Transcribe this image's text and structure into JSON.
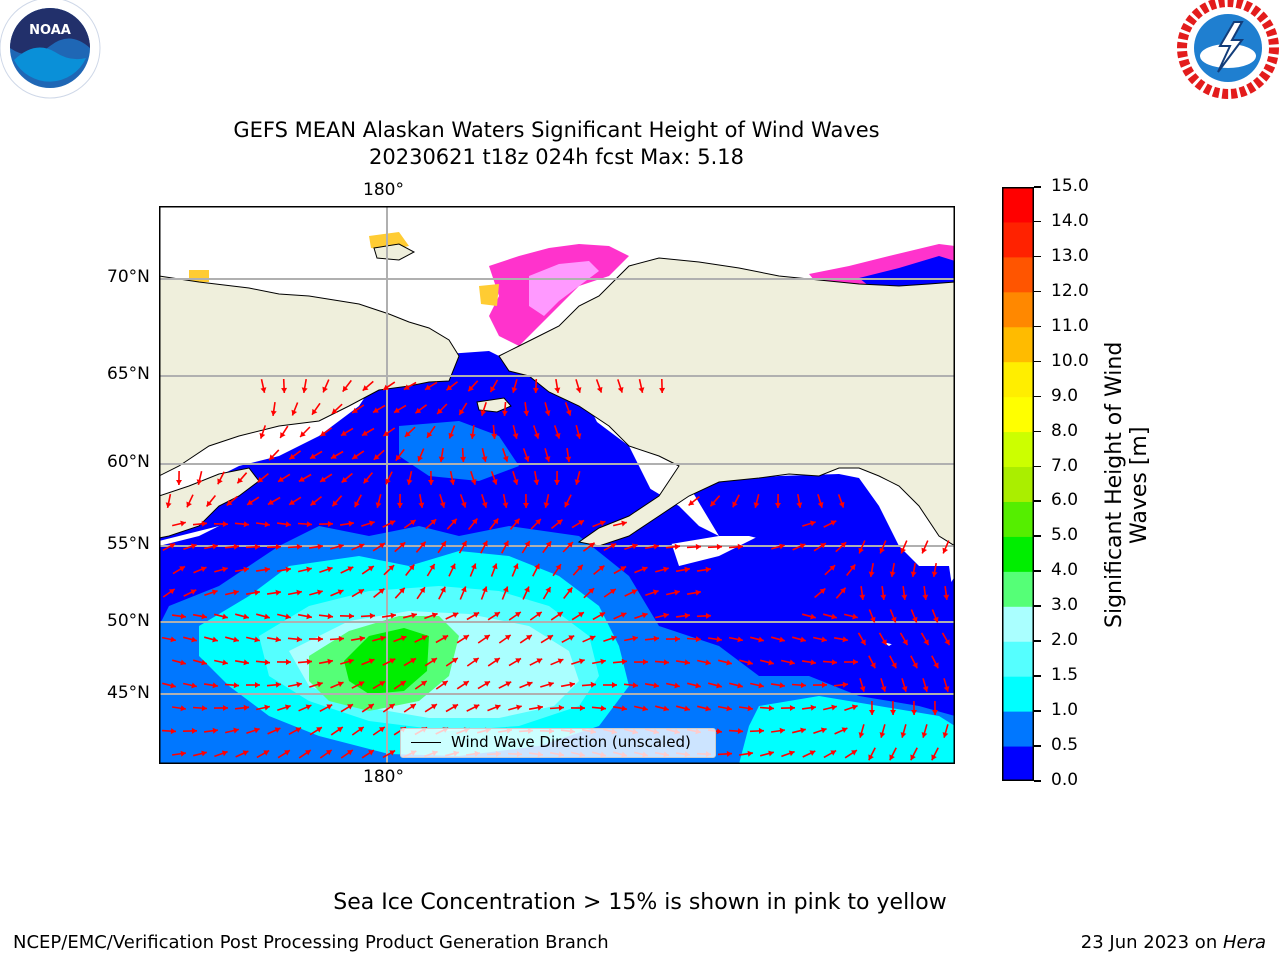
{
  "title_line1": "GEFS MEAN Alaskan Waters Significant Height of Wind Waves",
  "title_line2": "20230621 t18z 024h fcst   Max: 5.18",
  "logos": {
    "noaa_text": "NOAA",
    "noaa_ring": "NATIONAL OCEANIC AND ATMOSPHERIC ADMINISTRATION · U.S. DEPARTMENT OF COMMERCE",
    "nws_ring": "NATIONAL WEATHER SERVICE"
  },
  "map": {
    "lon_label_top": "180°",
    "lon_label_bottom": "180°",
    "lat_labels": [
      "70°N",
      "65°N",
      "60°N",
      "55°N",
      "50°N",
      "45°N"
    ],
    "legend_label": "Wind Wave Direction (unscaled)",
    "colors": {
      "land": "#efefdc",
      "grid": "#b0b0b0",
      "arrow": "#ff0000",
      "ice": [
        "#ff33cc",
        "#ff99ff",
        "#ffcc33",
        "#ffff66"
      ]
    }
  },
  "colorbar": {
    "ticks": [
      "0.0",
      "0.5",
      "1.0",
      "1.5",
      "2.0",
      "3.0",
      "4.0",
      "5.0",
      "6.0",
      "7.0",
      "8.0",
      "9.0",
      "10.0",
      "11.0",
      "12.0",
      "13.0",
      "14.0",
      "15.0"
    ],
    "colors": [
      "#0000ff",
      "#0077ff",
      "#00ffff",
      "#55ffff",
      "#aaffff",
      "#55ff77",
      "#00ee00",
      "#55ee00",
      "#aaee00",
      "#ccff00",
      "#ffff00",
      "#ffee00",
      "#ffbb00",
      "#ff8800",
      "#ff5500",
      "#ff2200",
      "#ff0000"
    ],
    "label_line1": "Significant Height of Wind",
    "label_line2": "Waves [m]"
  },
  "caption": "Sea Ice Concentration > 15% is shown in pink to yellow",
  "footer_left": "NCEP/EMC/Verification Post Processing Product Generation Branch",
  "footer_date": "23 Jun 2023 on ",
  "footer_machine": "Hera"
}
